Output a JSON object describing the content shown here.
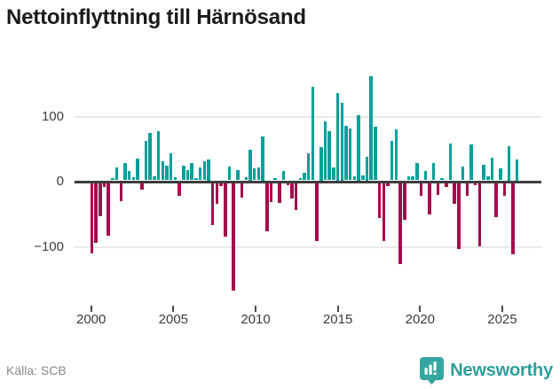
{
  "header": {
    "title": "Nettoinflyttning till Härnösand"
  },
  "footer": {
    "source_label": "Källa: SCB",
    "brand_name": "Newsworthy",
    "brand_icon": "newsworthy-badge-icon"
  },
  "colors": {
    "positive_bar": "#00a09a",
    "negative_bar": "#a60b4c",
    "axis": "#3d3d3d",
    "gridline": "#e9e9e9",
    "brand_teal": "#35a5a0",
    "title_text": "#1a1a1a",
    "tick_text": "#3c3c3c",
    "source_text": "#8a8a8a"
  },
  "chart_data": {
    "type": "bar",
    "title": "Nettoinflyttning till Härnösand",
    "xlabel": "",
    "ylabel": "",
    "frequency": "quarterly",
    "period_start": "2000 Q1",
    "period_end": "2025 Q3",
    "ylim": [
      -180,
      180
    ],
    "grid": "horizontal",
    "y_ticks": [
      {
        "label": "100",
        "value": 100
      },
      {
        "label": "0",
        "value": 0
      },
      {
        "label": "−100",
        "value": -100
      }
    ],
    "x_ticks": [
      {
        "label": "2000",
        "year": 2000
      },
      {
        "label": "2005",
        "year": 2005
      },
      {
        "label": "2010",
        "year": 2010
      },
      {
        "label": "2015",
        "year": 2015
      },
      {
        "label": "2020",
        "year": 2020
      },
      {
        "label": "2025",
        "year": 2025
      }
    ],
    "values": [
      -108,
      -92,
      -51,
      -6,
      -81,
      4,
      20,
      -28,
      26,
      14,
      5,
      33,
      -10,
      61,
      73,
      6,
      75,
      29,
      22,
      42,
      5,
      -19,
      22,
      16,
      26,
      4,
      20,
      29,
      32,
      -64,
      -32,
      -5,
      -82,
      21,
      -165,
      16,
      -22,
      5,
      47,
      18,
      20,
      68,
      -74,
      -29,
      4,
      -30,
      14,
      -4,
      -24,
      -41,
      4,
      11,
      41,
      144,
      -89,
      51,
      90,
      76,
      20,
      134,
      119,
      84,
      80,
      6,
      100,
      8,
      36,
      160,
      82,
      -54,
      -89,
      -5,
      60,
      78,
      -124,
      -56,
      6,
      6,
      27,
      -19,
      14,
      -48,
      27,
      -18,
      4,
      -6,
      57,
      -32,
      -101,
      21,
      -20,
      55,
      -4,
      -97,
      24,
      6,
      35,
      -52,
      18,
      -20,
      53,
      -110,
      32
    ]
  }
}
